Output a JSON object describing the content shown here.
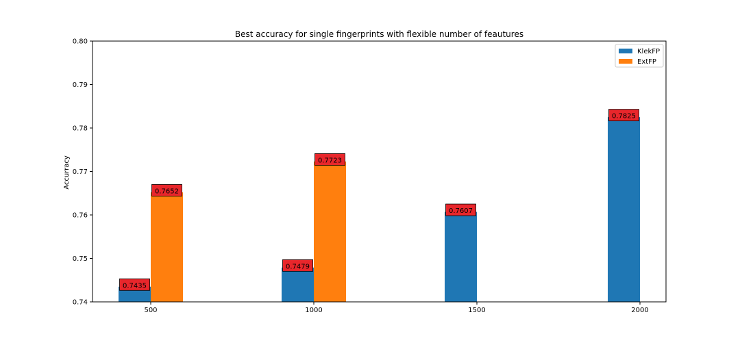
{
  "chart_data": {
    "type": "bar",
    "title": "Best accuracy for single fingerprints with flexible number of feautures",
    "xlabel": "",
    "ylabel": "Accurracy",
    "categories": [
      "500",
      "1000",
      "1500",
      "2000"
    ],
    "ylim": [
      0.74,
      0.8
    ],
    "yticks": [
      "0.74",
      "0.75",
      "0.76",
      "0.77",
      "0.78",
      "0.79",
      "0.80"
    ],
    "grid": false,
    "legend_position": "top-right",
    "series": [
      {
        "name": "KlekFP",
        "color": "#1f77b4",
        "values": [
          0.7435,
          0.7479,
          0.7607,
          0.7825
        ]
      },
      {
        "name": "ExtFP",
        "color": "#ff7f0e",
        "values": [
          0.7652,
          0.7723,
          null,
          null
        ]
      }
    ],
    "data_labels": [
      {
        "series": 0,
        "index": 0,
        "text": "0.7435"
      },
      {
        "series": 1,
        "index": 0,
        "text": "0.7652"
      },
      {
        "series": 0,
        "index": 1,
        "text": "0.7479"
      },
      {
        "series": 1,
        "index": 1,
        "text": "0.7723"
      },
      {
        "series": 0,
        "index": 2,
        "text": "0.7607"
      },
      {
        "series": 0,
        "index": 3,
        "text": "0.7825"
      }
    ],
    "label_box_color": "#e8262b"
  }
}
